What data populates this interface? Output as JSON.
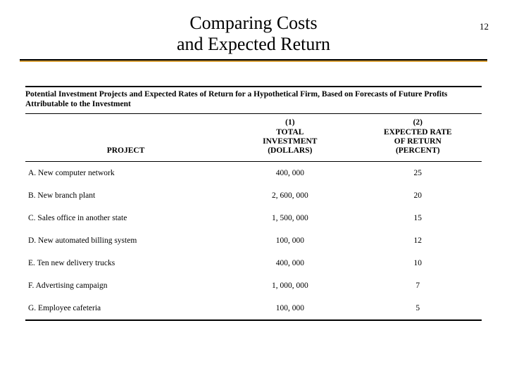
{
  "page_number": "12",
  "title_line1": "Comparing Costs",
  "title_line2": "and Expected Return",
  "accent_color": "#d9a13b",
  "table": {
    "caption": "Potential Investment Projects and Expected Rates of Return for a Hypothetical Firm, Based on Forecasts of Future Profits Attributable to the Investment",
    "columns": {
      "project": "PROJECT",
      "investment": "(1)\nTOTAL\nINVESTMENT\n(DOLLARS)",
      "return": "(2)\nEXPECTED RATE\nOF RETURN\n(PERCENT)"
    },
    "rows": [
      {
        "project": "A.  New computer network",
        "investment": "400, 000",
        "return": "25"
      },
      {
        "project": "B.  New branch plant",
        "investment": "2, 600, 000",
        "return": "20"
      },
      {
        "project": "C.  Sales office in another state",
        "investment": "1, 500, 000",
        "return": "15"
      },
      {
        "project": "D.  New automated billing system",
        "investment": "100, 000",
        "return": "12"
      },
      {
        "project": "E.  Ten new delivery trucks",
        "investment": "400, 000",
        "return": "10"
      },
      {
        "project": "F.  Advertising campaign",
        "investment": "1, 000, 000",
        "return": "7"
      },
      {
        "project": "G.  Employee cafeteria",
        "investment": "100, 000",
        "return": "5"
      }
    ]
  }
}
